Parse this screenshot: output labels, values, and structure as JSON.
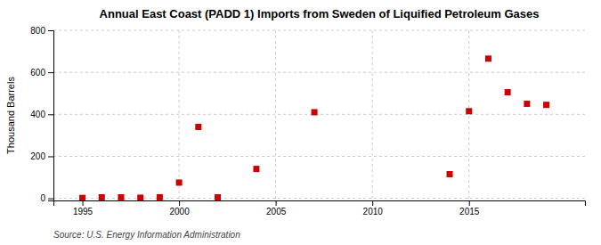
{
  "chart_data": {
    "type": "scatter",
    "title": "Annual East Coast (PADD 1) Imports from Sweden of Liquified Petroleum Gases",
    "y_label": "Thousand Barrels",
    "source": "Source: U.S. Energy Information Administration",
    "x": [
      1995,
      1996,
      1997,
      1998,
      1999,
      2000,
      2001,
      2002,
      2004,
      2007,
      2014,
      2015,
      2016,
      2017,
      2018,
      2019
    ],
    "values": [
      2,
      5,
      5,
      3,
      5,
      75,
      340,
      5,
      140,
      410,
      115,
      415,
      665,
      505,
      450,
      445
    ],
    "color": "#cc0000",
    "marker": "square",
    "xlim": [
      1993.5,
      2021
    ],
    "ylim": [
      -10,
      800
    ],
    "xticks": [
      1995,
      2000,
      2005,
      2010,
      2015
    ],
    "yticks": [
      0,
      200,
      400,
      600,
      800
    ],
    "vlines": [
      2000,
      2005,
      2010,
      2015
    ],
    "grid": true
  }
}
